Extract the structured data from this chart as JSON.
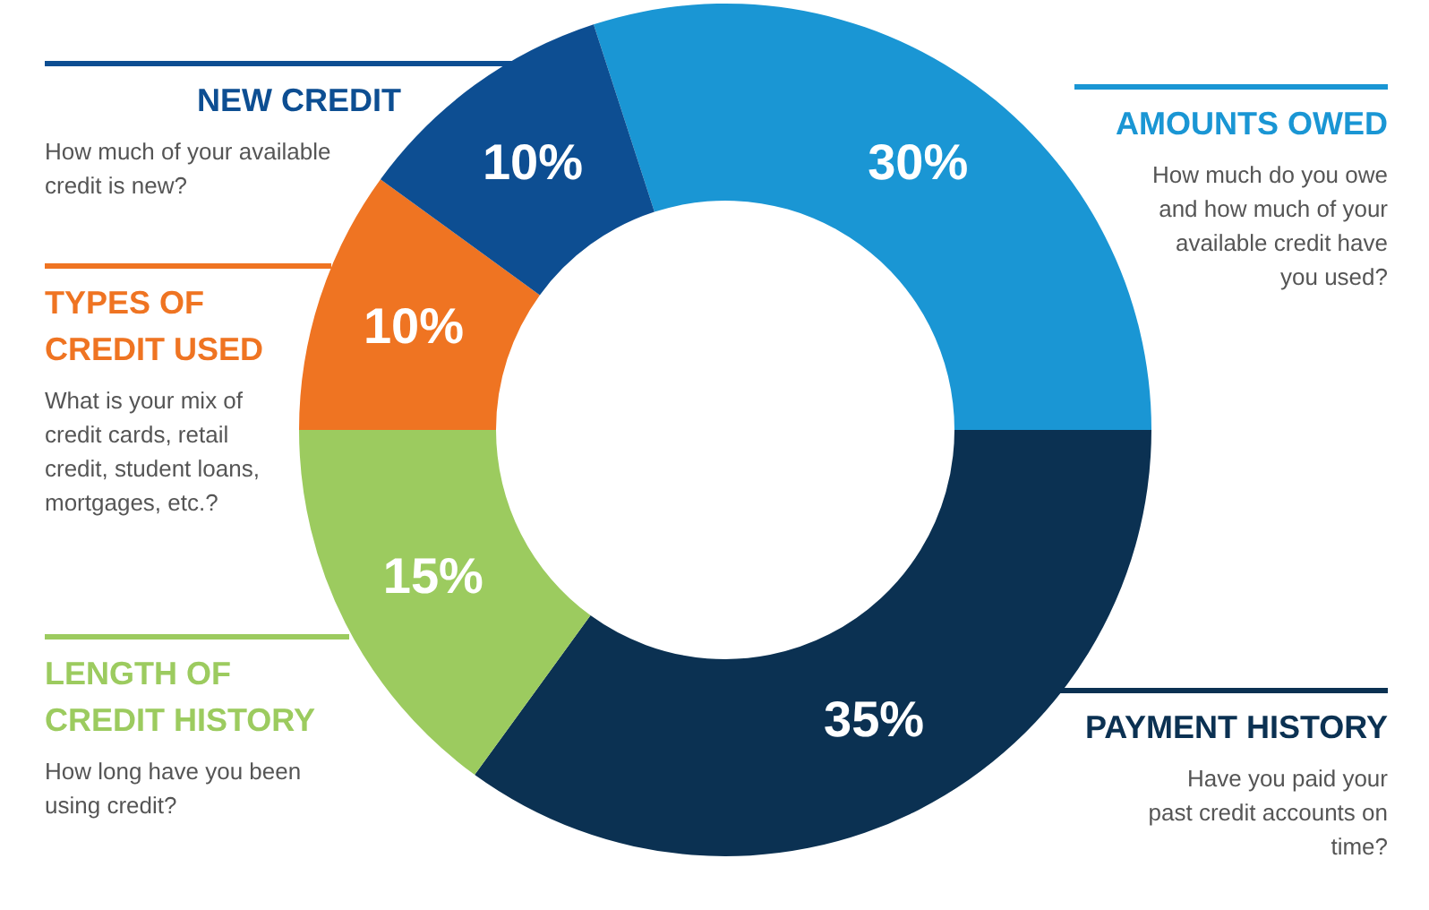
{
  "chart_data": {
    "type": "donut",
    "categories": [
      "AMOUNTS OWED",
      "PAYMENT HISTORY",
      "LENGTH OF CREDIT HISTORY",
      "TYPES OF CREDIT USED",
      "NEW CREDIT"
    ],
    "values": [
      30,
      35,
      15,
      10,
      10
    ],
    "value_labels": [
      "30%",
      "35%",
      "15%",
      "10%",
      "10%"
    ],
    "colors": [
      "#1a96d4",
      "#0b3152",
      "#9ccb5f",
      "#ef7422",
      "#0d4e92"
    ],
    "annotations": [
      "How much do you owe and how much of your available credit have you used?",
      "Have you paid your past credit accounts on time?",
      "How long have you been using credit?",
      "What is your mix of credit cards, retail credit, student loans, mortgages, etc.?",
      "How much of your available credit is new?"
    ]
  }
}
